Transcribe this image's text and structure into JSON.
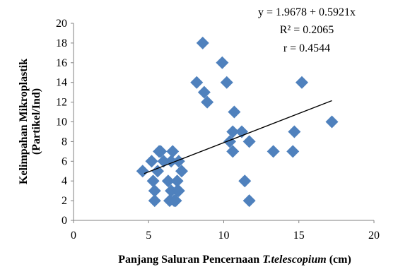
{
  "chart_data": {
    "type": "scatter",
    "title": "",
    "xlabel_prefix": "Panjang Saluran Pencernaan ",
    "xlabel_italic": "T.telescopium",
    "xlabel_suffix": " (cm)",
    "ylabel_line1": "Kelimpahan Mikroplastik",
    "ylabel_line2": "(Partikel/Ind)",
    "xlim": [
      0,
      20
    ],
    "ylim": [
      0,
      20
    ],
    "x_ticks": [
      0,
      5,
      10,
      15,
      20
    ],
    "y_ticks": [
      0,
      2,
      4,
      6,
      8,
      10,
      12,
      14,
      16,
      18,
      20
    ],
    "grid": false,
    "marker": "diamond",
    "marker_color": "#4f81bd",
    "trendline_color": "#000000",
    "trendline": {
      "intercept": 1.9678,
      "slope": 0.5921,
      "x_range": [
        4.7,
        17.2
      ]
    },
    "annotations": [
      "y = 1.9678 + 0.5921x",
      "R² = 0.2065",
      "r = 0.4544"
    ],
    "series": [
      {
        "points": [
          {
            "x": 4.6,
            "y": 5
          },
          {
            "x": 5.2,
            "y": 6
          },
          {
            "x": 5.3,
            "y": 4
          },
          {
            "x": 5.4,
            "y": 3
          },
          {
            "x": 5.4,
            "y": 2
          },
          {
            "x": 5.6,
            "y": 5
          },
          {
            "x": 5.7,
            "y": 7
          },
          {
            "x": 5.8,
            "y": 7
          },
          {
            "x": 6.0,
            "y": 6
          },
          {
            "x": 6.3,
            "y": 4
          },
          {
            "x": 6.4,
            "y": 2
          },
          {
            "x": 6.5,
            "y": 3
          },
          {
            "x": 6.5,
            "y": 6
          },
          {
            "x": 6.6,
            "y": 7
          },
          {
            "x": 6.7,
            "y": 2
          },
          {
            "x": 6.8,
            "y": 2
          },
          {
            "x": 6.9,
            "y": 4
          },
          {
            "x": 6.9,
            "y": 3
          },
          {
            "x": 7.0,
            "y": 3
          },
          {
            "x": 7.0,
            "y": 6
          },
          {
            "x": 7.2,
            "y": 5
          },
          {
            "x": 8.2,
            "y": 14
          },
          {
            "x": 8.6,
            "y": 18
          },
          {
            "x": 8.7,
            "y": 13
          },
          {
            "x": 8.9,
            "y": 12
          },
          {
            "x": 9.9,
            "y": 16
          },
          {
            "x": 10.2,
            "y": 14
          },
          {
            "x": 10.4,
            "y": 8
          },
          {
            "x": 10.6,
            "y": 9
          },
          {
            "x": 10.6,
            "y": 7
          },
          {
            "x": 10.7,
            "y": 11
          },
          {
            "x": 11.2,
            "y": 9
          },
          {
            "x": 11.4,
            "y": 4
          },
          {
            "x": 11.7,
            "y": 8
          },
          {
            "x": 11.7,
            "y": 2
          },
          {
            "x": 13.3,
            "y": 7
          },
          {
            "x": 14.6,
            "y": 7
          },
          {
            "x": 14.7,
            "y": 9
          },
          {
            "x": 15.2,
            "y": 14
          },
          {
            "x": 17.2,
            "y": 10
          }
        ]
      }
    ]
  }
}
